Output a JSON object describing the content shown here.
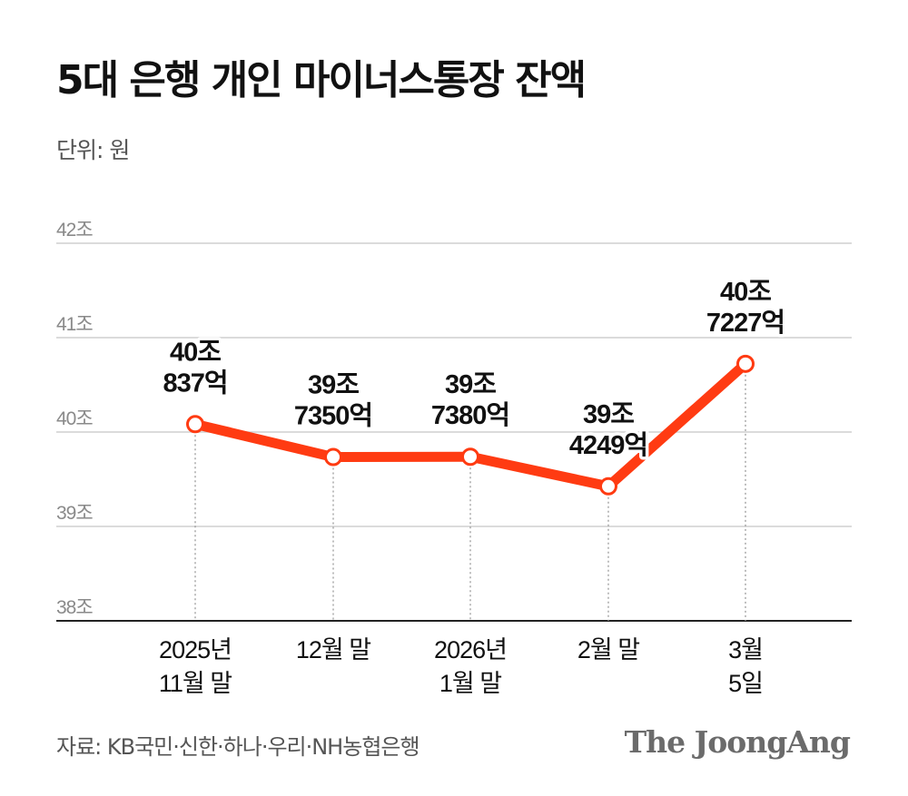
{
  "header": {
    "title": "5대 은행 개인 마이너스통장 잔액",
    "unit": "단위: 원"
  },
  "footer": {
    "source": "자료: KB국민·신한·하나·우리·NH농협은행",
    "logo": "The JoongAng"
  },
  "colors": {
    "line": "#ff3b12",
    "grid": "#cfcfcf",
    "tick": "#8a8a8a",
    "text": "#111111"
  },
  "chart_data": {
    "type": "line",
    "title": "5대 은행 개인 마이너스통장 잔액",
    "ylabel": "단위: 원",
    "ylim": [
      38,
      42
    ],
    "yticks": [
      {
        "value": 42,
        "label": "42조"
      },
      {
        "value": 41,
        "label": "41조"
      },
      {
        "value": 40,
        "label": "40조"
      },
      {
        "value": 39,
        "label": "39조"
      },
      {
        "value": 38,
        "label": "38조"
      }
    ],
    "categories": [
      [
        "2025년",
        "11월 말"
      ],
      [
        "12월 말"
      ],
      [
        "2026년",
        "1월 말"
      ],
      [
        "2월 말"
      ],
      [
        "3월",
        "5일"
      ]
    ],
    "series": [
      {
        "name": "개인 마이너스통장 잔액",
        "values": [
          40.0837,
          39.735,
          39.738,
          39.4249,
          40.7227
        ],
        "data_labels": [
          [
            "40조",
            "837억"
          ],
          [
            "39조",
            "7350억"
          ],
          [
            "39조",
            "7380억"
          ],
          [
            "39조",
            "4249억"
          ],
          [
            "40조",
            "7227억"
          ]
        ]
      }
    ]
  }
}
